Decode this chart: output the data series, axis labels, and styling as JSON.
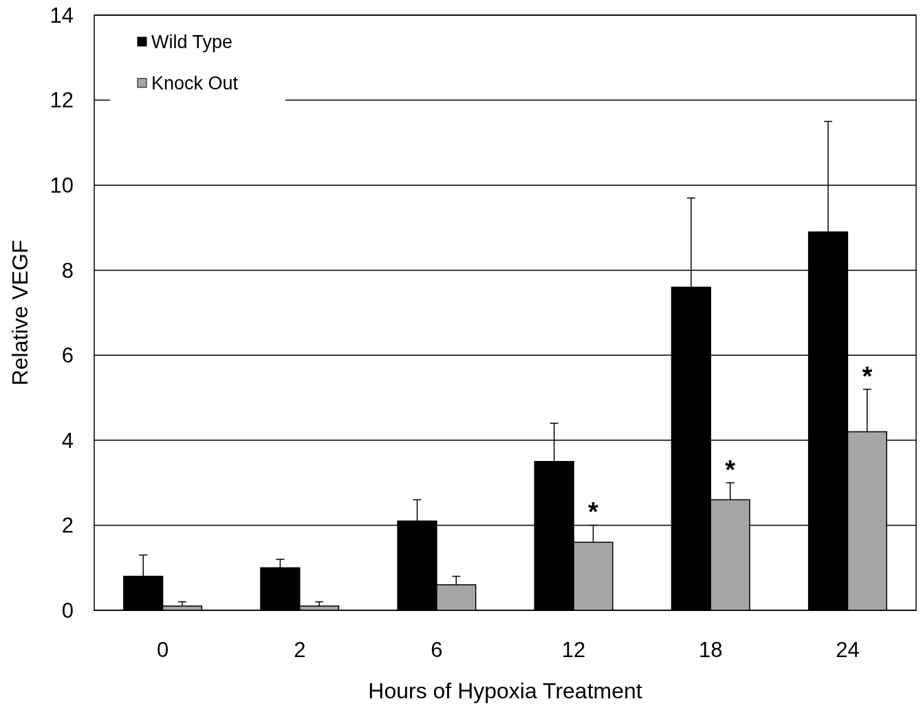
{
  "chart_data": {
    "type": "bar",
    "xlabel": "Hours of Hypoxia Treatment",
    "ylabel": "Relative VEGF",
    "categories": [
      "0",
      "2",
      "6",
      "12",
      "18",
      "24"
    ],
    "series": [
      {
        "name": "Wild Type",
        "color": "#000000",
        "values": [
          0.8,
          1.0,
          2.1,
          3.5,
          7.6,
          8.9
        ],
        "errors": [
          [
            0.8,
            1.3
          ],
          [
            1.0,
            1.2
          ],
          [
            2.1,
            2.6
          ],
          [
            3.5,
            4.4
          ],
          [
            7.6,
            9.7
          ],
          [
            8.9,
            11.5
          ]
        ]
      },
      {
        "name": "Knock Out",
        "color": "#a6a6a6",
        "values": [
          0.1,
          0.1,
          0.6,
          1.6,
          2.6,
          4.2
        ],
        "errors": [
          [
            0.1,
            0.2
          ],
          [
            0.1,
            0.2
          ],
          [
            0.6,
            0.8
          ],
          [
            1.6,
            2.0
          ],
          [
            2.6,
            3.0
          ],
          [
            4.2,
            5.2
          ]
        ]
      }
    ],
    "ylim": [
      0,
      14
    ],
    "yticks": [
      0,
      2,
      4,
      6,
      8,
      10,
      12,
      14
    ],
    "grid": "y",
    "legend": "top left",
    "annotations": [
      {
        "text": "*",
        "x": "12",
        "y": 2.0
      },
      {
        "text": "*",
        "x": "18",
        "y": 3.0
      },
      {
        "text": "*",
        "x": "24",
        "y": 5.2
      }
    ]
  }
}
